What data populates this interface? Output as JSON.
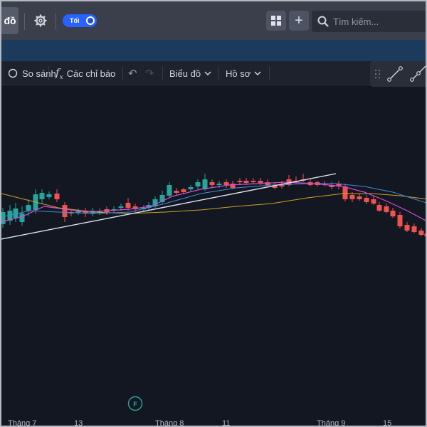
{
  "topbar": {
    "title": "đồ",
    "theme_toggle_label": "Tối",
    "search_placeholder": "Tìm kiếm..."
  },
  "toolbar": {
    "compare_label": "So sánh",
    "indicators_label": "Các chỉ báo",
    "chart_type_label": "Biểu đồ",
    "profile_label": "Hồ sơ"
  },
  "chart": {
    "x_labels": [
      "Tháng 7",
      "13",
      "Tháng 8",
      "11",
      "Tháng 9",
      "15"
    ],
    "event_marker": "F",
    "colors": {
      "up": "#26a69a",
      "down": "#ef5350",
      "ma_short": "#d14cd6",
      "ma_mid": "#3d8fd6",
      "ma_long": "#c9a227",
      "trendline": "#e0e3eb"
    }
  }
}
